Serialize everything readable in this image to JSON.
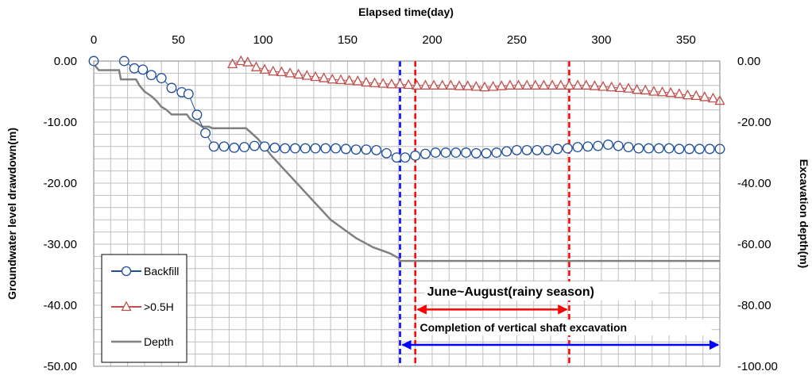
{
  "chart_data": {
    "type": "line",
    "xlabel": "Elapsed time(day)",
    "ylabel": "Groundwater level drawdown(m)",
    "y2label": "Excavation depth(m)",
    "xlim": [
      0,
      370
    ],
    "ylim": [
      -50,
      0
    ],
    "y2lim": [
      -100,
      0
    ],
    "x_ticks": [
      "0",
      "50",
      "100",
      "150",
      "200",
      "250",
      "300",
      "350"
    ],
    "y_ticks": [
      "0.00",
      "-10.00",
      "-20.00",
      "-30.00",
      "-40.00",
      "-50.00"
    ],
    "y2_ticks": [
      "0.00",
      "-20.00",
      "-40.00",
      "-60.00",
      "-80.00",
      "-100.00"
    ],
    "grid": true,
    "legend_position": "bottom-left",
    "colors": {
      "backfill": "#1f4e9a",
      "half_h": "#c0504d",
      "depth": "#808080",
      "red_line": "#ff0000",
      "blue_line": "#0000ff",
      "grid": "#bfbfbf"
    },
    "series": [
      {
        "name": "Backfill",
        "axis": "left",
        "marker": "circle",
        "x": [
          0,
          18,
          24,
          29,
          34,
          40,
          46,
          52,
          56,
          61,
          66,
          71,
          77,
          83,
          89,
          95,
          101,
          107,
          113,
          119,
          125,
          131,
          137,
          143,
          149,
          155,
          161,
          167,
          173,
          179,
          184,
          190,
          196,
          202,
          208,
          214,
          220,
          226,
          232,
          238,
          244,
          250,
          256,
          262,
          268,
          274,
          280,
          286,
          292,
          298,
          304,
          310,
          316,
          322,
          328,
          334,
          340,
          346,
          352,
          358,
          364,
          370
        ],
        "y": [
          0,
          0,
          -1.2,
          -1.4,
          -2.3,
          -2.8,
          -4.4,
          -5.1,
          -5.4,
          -8.8,
          -11.8,
          -14.0,
          -14.0,
          -14.2,
          -14.1,
          -13.9,
          -14.0,
          -14.2,
          -14.3,
          -14.3,
          -14.3,
          -14.3,
          -14.3,
          -14.3,
          -14.4,
          -14.5,
          -14.5,
          -14.6,
          -15.1,
          -15.8,
          -15.8,
          -15.5,
          -15.2,
          -15.0,
          -15.0,
          -15.0,
          -15.0,
          -15.1,
          -15.1,
          -15.0,
          -14.8,
          -14.6,
          -14.6,
          -14.6,
          -14.6,
          -14.4,
          -14.3,
          -14.1,
          -14.0,
          -13.9,
          -13.7,
          -13.9,
          -14.1,
          -14.3,
          -14.3,
          -14.3,
          -14.3,
          -14.4,
          -14.4,
          -14.4,
          -14.4,
          -14.4
        ]
      },
      {
        "name": ">0.5H",
        "axis": "left",
        "marker": "triangle",
        "x": [
          82,
          87,
          91,
          96,
          101,
          106,
          111,
          116,
          121,
          126,
          131,
          136,
          141,
          146,
          151,
          156,
          161,
          166,
          171,
          176,
          181,
          186,
          191,
          196,
          201,
          206,
          211,
          216,
          221,
          226,
          231,
          236,
          241,
          246,
          251,
          256,
          261,
          266,
          271,
          276,
          281,
          286,
          291,
          296,
          301,
          306,
          311,
          316,
          321,
          326,
          331,
          336,
          341,
          346,
          351,
          356,
          361,
          366,
          370
        ],
        "y": [
          -0.5,
          0.0,
          -0.2,
          -1.0,
          -1.4,
          -1.7,
          -1.8,
          -2.0,
          -2.2,
          -2.4,
          -2.6,
          -2.8,
          -3.0,
          -3.1,
          -3.2,
          -3.3,
          -3.5,
          -3.6,
          -3.7,
          -3.8,
          -3.8,
          -3.9,
          -4.0,
          -4.0,
          -4.0,
          -4.0,
          -4.0,
          -4.1,
          -4.1,
          -4.2,
          -4.3,
          -4.2,
          -4.1,
          -4.0,
          -4.0,
          -4.0,
          -4.0,
          -4.0,
          -4.0,
          -4.0,
          -4.0,
          -4.0,
          -4.0,
          -4.1,
          -4.2,
          -4.3,
          -4.4,
          -4.5,
          -4.7,
          -4.8,
          -5.0,
          -5.1,
          -5.2,
          -5.4,
          -5.6,
          -5.7,
          -5.9,
          -6.1,
          -6.5
        ]
      },
      {
        "name": "Depth",
        "axis": "right",
        "marker": "none",
        "x": [
          0,
          3,
          10,
          15,
          16,
          25,
          27,
          30,
          34,
          37,
          40,
          43,
          46,
          50,
          55,
          57,
          60,
          64,
          68,
          70,
          75,
          85,
          90,
          92,
          97,
          100,
          105,
          110,
          115,
          120,
          125,
          130,
          135,
          140,
          145,
          150,
          155,
          160,
          165,
          170,
          175,
          180,
          181,
          370
        ],
        "y": [
          -1.0,
          -3.0,
          -3.0,
          -3.0,
          -6.0,
          -6.0,
          -8.0,
          -10.0,
          -11.5,
          -13.0,
          -15.0,
          -16.0,
          -17.5,
          -17.5,
          -17.5,
          -19.0,
          -20.0,
          -21.5,
          -21.5,
          -22.0,
          -22.0,
          -22.0,
          -22.0,
          -23.0,
          -25.5,
          -27.5,
          -31.0,
          -34.0,
          -37.0,
          -40.0,
          -43.0,
          -46.0,
          -49.0,
          -52.0,
          -54.0,
          -56.0,
          -58.0,
          -59.5,
          -61.0,
          -62.0,
          -63.0,
          -64.5,
          -65.5,
          -65.5
        ]
      }
    ],
    "vlines": [
      {
        "x": 181,
        "style": "dashed",
        "color": "blue"
      },
      {
        "x": 190,
        "style": "dashed",
        "color": "red"
      },
      {
        "x": 281,
        "style": "dashed",
        "color": "red"
      }
    ],
    "annotations": [
      {
        "text": "June~August(rainy  season)",
        "x_start": 190,
        "x_end": 281,
        "y": -40.7,
        "color": "red"
      },
      {
        "text": "Completion of vertical shaft excavation",
        "x_start": 181,
        "x_end": 370,
        "y": -46.5,
        "color": "blue"
      }
    ]
  }
}
